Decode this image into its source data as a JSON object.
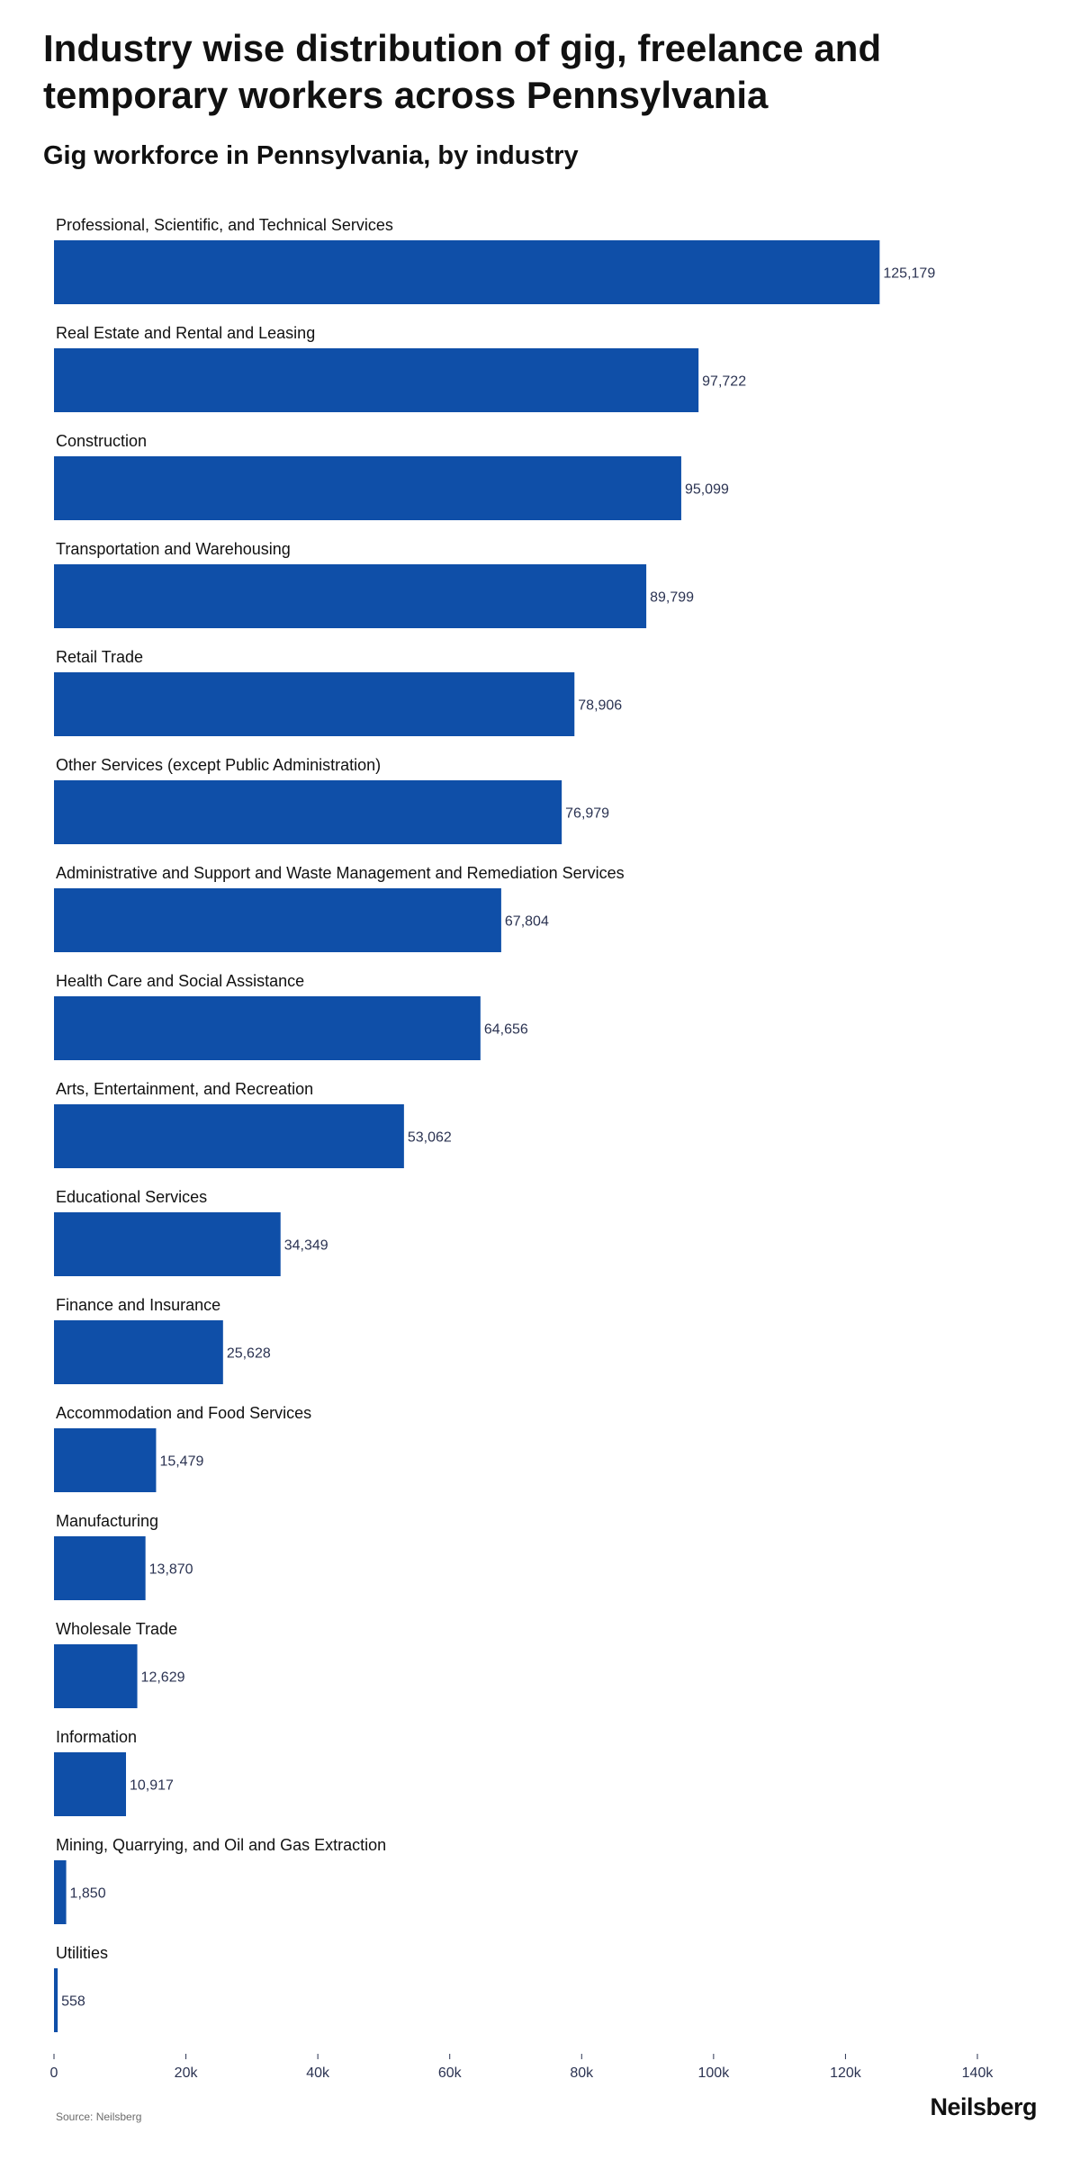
{
  "title": "Industry wise distribution of gig, freelance and temporary workers across Pennsylvania",
  "subtitle": "Gig workforce in Pennsylvania, by industry",
  "source": "Source: Neilsberg",
  "brand": "Neilsberg",
  "colors": {
    "bar": "#0f4fa8",
    "value_text": "#2b3352",
    "axis_text": "#2b3352"
  },
  "chart_data": {
    "type": "bar",
    "orientation": "horizontal",
    "title": "Gig workforce in Pennsylvania, by industry",
    "xlabel": "",
    "ylabel": "",
    "xlim": [
      0,
      140000
    ],
    "x_ticks": [
      0,
      20000,
      40000,
      60000,
      80000,
      100000,
      120000,
      140000
    ],
    "x_tick_labels": [
      "0",
      "20k",
      "40k",
      "60k",
      "80k",
      "100k",
      "120k",
      "140k"
    ],
    "grid": false,
    "categories": [
      "Professional, Scientific, and Technical Services",
      "Real Estate and Rental and Leasing",
      "Construction",
      "Transportation and Warehousing",
      "Retail Trade",
      "Other Services (except Public Administration)",
      "Administrative and Support and Waste Management and Remediation Services",
      "Health Care and Social Assistance",
      "Arts, Entertainment, and Recreation",
      "Educational Services",
      "Finance and Insurance",
      "Accommodation and Food Services",
      "Manufacturing",
      "Wholesale Trade",
      "Information",
      "Mining, Quarrying, and Oil and Gas Extraction",
      "Utilities"
    ],
    "values": [
      125179,
      97722,
      95099,
      89799,
      78906,
      76979,
      67804,
      64656,
      53062,
      34349,
      25628,
      15479,
      13870,
      12629,
      10917,
      1850,
      558
    ],
    "value_labels": [
      "125,179",
      "97,722",
      "95,099",
      "89,799",
      "78,906",
      "76,979",
      "67,804",
      "64,656",
      "53,062",
      "34,349",
      "25,628",
      "15,479",
      "13,870",
      "12,629",
      "10,917",
      "1,850",
      "558"
    ]
  }
}
